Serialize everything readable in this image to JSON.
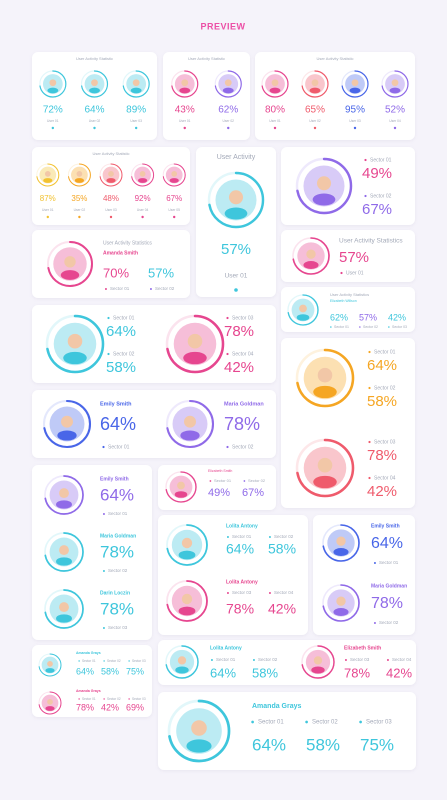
{
  "header": {
    "title": "PREVIEW"
  },
  "cards": [
    {
      "title": "User Activity Statistic",
      "users": [
        {
          "value": "72%",
          "label": "User 01"
        },
        {
          "value": "64%",
          "label": "User 02"
        },
        {
          "value": "89%",
          "label": "User 03"
        }
      ]
    },
    {
      "title": "User Activity Statistic",
      "users": [
        {
          "value": "43%",
          "label": "User 01"
        },
        {
          "value": "62%",
          "label": "User 02"
        }
      ]
    },
    {
      "title": "User Activity Statistic",
      "users": [
        {
          "value": "80%",
          "label": "User 01"
        },
        {
          "value": "65%",
          "label": "User 02"
        },
        {
          "value": "95%",
          "label": "User 03"
        },
        {
          "value": "52%",
          "label": "User 04"
        }
      ]
    },
    {
      "title": "User Activity Statistic",
      "users": [
        {
          "value": "87%",
          "label": "User 01"
        },
        {
          "value": "35%",
          "label": "User 02"
        },
        {
          "value": "48%",
          "label": "User 03"
        },
        {
          "value": "92%",
          "label": "User 04"
        },
        {
          "value": "67%",
          "label": "User 05"
        }
      ]
    },
    {
      "title": "User Activity",
      "value": "57%",
      "label": "User 01"
    },
    {
      "sectors": [
        {
          "label": "Sector 01",
          "value": "49%"
        },
        {
          "label": "Sector 02",
          "value": "67%"
        }
      ]
    },
    {
      "title": "User Activity Statistics",
      "name": "Amanda Smith",
      "sectors": [
        {
          "label": "Sector 01",
          "value": "70%"
        },
        {
          "label": "Sector 02",
          "value": "57%"
        }
      ]
    },
    {
      "title": "User Activity Statistics",
      "value": "57%",
      "label": "User 01"
    },
    {
      "title": "User Activity Statistics",
      "name": "Elizabeth Willson",
      "sectors": [
        {
          "label": "Sector 01",
          "value": "62%"
        },
        {
          "label": "Sector 02",
          "value": "57%"
        },
        {
          "label": "Sector 03",
          "value": "42%"
        }
      ]
    },
    {
      "groups": [
        {
          "sectors": [
            {
              "label": "Sector 01",
              "value": "64%"
            },
            {
              "label": "Sector 02",
              "value": "58%"
            }
          ]
        },
        {
          "sectors": [
            {
              "label": "Sector 03",
              "value": "78%"
            },
            {
              "label": "Sector 04",
              "value": "42%"
            }
          ]
        }
      ]
    },
    {
      "groups": [
        {
          "sectors": [
            {
              "label": "Sector 01",
              "value": "64%"
            },
            {
              "label": "Sector 02",
              "value": "58%"
            }
          ]
        },
        {
          "sectors": [
            {
              "label": "Sector 03",
              "value": "78%"
            },
            {
              "label": "Sector 04",
              "value": "42%"
            }
          ]
        }
      ]
    },
    {
      "people": [
        {
          "name": "Emily Smith",
          "value": "64%",
          "sector": "Sector 01"
        },
        {
          "name": "Maria Goldman",
          "value": "78%",
          "sector": "Sector 02"
        }
      ]
    },
    {
      "people": [
        {
          "name": "Emily Smith",
          "value": "64%",
          "sector": "Sector 01"
        },
        {
          "name": "Maria Goldman",
          "value": "78%",
          "sector": "Sector 02"
        },
        {
          "name": "Darin Loczin",
          "value": "78%",
          "sector": "Sector 03"
        }
      ]
    },
    {
      "name": "Elizabeth Smith",
      "sectors": [
        {
          "label": "Sector 01",
          "value": "49%"
        },
        {
          "label": "Sector 02",
          "value": "67%"
        }
      ]
    },
    {
      "groups": [
        {
          "name": "Lolita Antony",
          "sectors": [
            {
              "label": "Sector 01",
              "value": "64%"
            },
            {
              "label": "Sector 02",
              "value": "58%"
            }
          ]
        },
        {
          "name": "Lolita Antony",
          "sectors": [
            {
              "label": "Sector 03",
              "value": "78%"
            },
            {
              "label": "Sector 04",
              "value": "42%"
            }
          ]
        }
      ]
    },
    {
      "people": [
        {
          "name": "Emily Smith",
          "value": "64%",
          "sector": "Sector 01"
        },
        {
          "name": "Maria Goldman",
          "value": "78%",
          "sector": "Sector 02"
        }
      ]
    },
    {
      "groups": [
        {
          "name": "Amanda Grays",
          "sectors": [
            {
              "label": "Sector 01",
              "value": "64%"
            },
            {
              "label": "Sector 02",
              "value": "58%"
            },
            {
              "label": "Sector 03",
              "value": "75%"
            }
          ]
        },
        {
          "name": "Amanda Grays",
          "sectors": [
            {
              "label": "Sector 01",
              "value": "78%"
            },
            {
              "label": "Sector 02",
              "value": "42%"
            },
            {
              "label": "Sector 03",
              "value": "69%"
            }
          ]
        }
      ]
    },
    {
      "groups": [
        {
          "name": "Lolita Antony",
          "sectors": [
            {
              "label": "Sector 01",
              "value": "64%"
            },
            {
              "label": "Sector 02",
              "value": "58%"
            }
          ]
        },
        {
          "name": "Elizabeth Smith",
          "sectors": [
            {
              "label": "Sector 03",
              "value": "78%"
            },
            {
              "label": "Sector 04",
              "value": "42%"
            }
          ]
        }
      ]
    },
    {
      "name": "Amanda Grays",
      "sectors": [
        {
          "label": "Sector 01",
          "value": "64%"
        },
        {
          "label": "Sector 02",
          "value": "58%"
        },
        {
          "label": "Sector 03",
          "value": "75%"
        }
      ]
    }
  ]
}
